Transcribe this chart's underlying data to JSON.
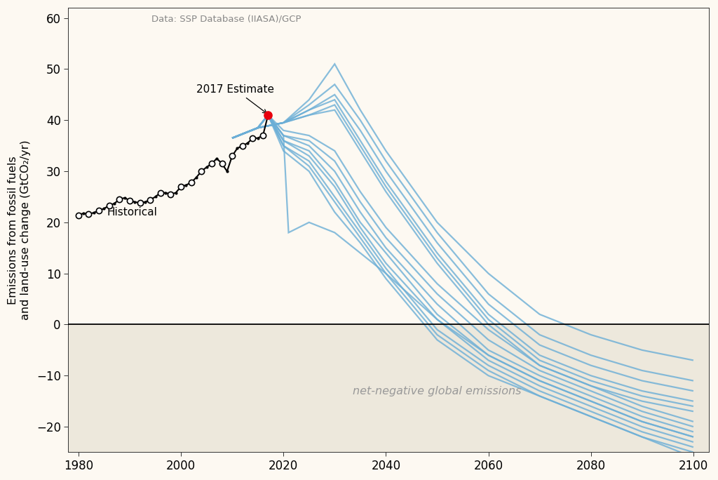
{
  "source_text": "Data: SSP Database (IIASA)/GCP",
  "ylabel": "Emissions from fossil fuels\nand land-use change (GtCO₂/yr)",
  "xlim": [
    1978,
    2103
  ],
  "ylim": [
    -25,
    62
  ],
  "yticks": [
    -20,
    -10,
    0,
    10,
    20,
    30,
    40,
    50,
    60
  ],
  "xticks": [
    1980,
    2000,
    2020,
    2040,
    2060,
    2080,
    2100
  ],
  "bg_color": "#fdf9f2",
  "plot_bg_color": "#fdf9f2",
  "negative_shade_color": "#ede8dc",
  "zero_line_color": "#000000",
  "annotation_historical": "Historical",
  "annotation_2017": "2017 Estimate",
  "net_negative_text": "net-negative global emissions",
  "historical_line_color": "#000000",
  "historical_dot_color": "#000000",
  "historical_circle_facecolor": "#ffffff",
  "historical_circle_edgecolor": "#000000",
  "estimate_2017_year": 2017,
  "estimate_2017_value": 41.0,
  "scenario_color": "#6baed6",
  "scenario_alpha": 0.8,
  "scenario_linewidth": 1.6,
  "scenarios": [
    {
      "years": [
        2010,
        2015,
        2020,
        2025,
        2030,
        2035,
        2040,
        2050,
        2060,
        2070,
        2080,
        2090,
        2100
      ],
      "values": [
        36.5,
        38.5,
        39.5,
        44,
        51,
        42,
        34,
        20,
        10,
        2,
        -2,
        -5,
        -7
      ]
    },
    {
      "years": [
        2010,
        2015,
        2020,
        2025,
        2030,
        2035,
        2040,
        2050,
        2060,
        2070,
        2080,
        2090,
        2100
      ],
      "values": [
        36.5,
        38.5,
        39.5,
        43,
        47,
        40,
        32,
        18,
        6,
        -2,
        -6,
        -9,
        -11
      ]
    },
    {
      "years": [
        2010,
        2015,
        2020,
        2025,
        2030,
        2035,
        2040,
        2050,
        2060,
        2070,
        2080,
        2090,
        2100
      ],
      "values": [
        36.5,
        38.5,
        39.5,
        42,
        45,
        38,
        30,
        16,
        4,
        -4,
        -8,
        -11,
        -13
      ]
    },
    {
      "years": [
        2010,
        2015,
        2020,
        2025,
        2030,
        2035,
        2040,
        2050,
        2060,
        2070,
        2080,
        2090,
        2100
      ],
      "values": [
        36.5,
        38.5,
        39.5,
        42,
        44,
        36,
        28,
        14,
        2,
        -6,
        -10,
        -13,
        -15
      ]
    },
    {
      "years": [
        2010,
        2015,
        2020,
        2025,
        2030,
        2035,
        2040,
        2050,
        2060,
        2070,
        2080,
        2090,
        2100
      ],
      "values": [
        36.5,
        38.5,
        39.5,
        41,
        43,
        35,
        27,
        13,
        1,
        -7,
        -11,
        -14,
        -16
      ]
    },
    {
      "years": [
        2010,
        2015,
        2020,
        2025,
        2030,
        2035,
        2040,
        2050,
        2060,
        2070,
        2080,
        2090,
        2100
      ],
      "values": [
        36.5,
        38.5,
        39.5,
        41,
        42,
        34,
        26,
        12,
        0,
        -8,
        -12,
        -15,
        -17
      ]
    },
    {
      "years": [
        2010,
        2015,
        2017,
        2020,
        2025,
        2030,
        2035,
        2040,
        2050,
        2060,
        2070,
        2080,
        2090,
        2100
      ],
      "values": [
        36.5,
        38.5,
        41,
        38,
        37,
        34,
        26,
        19,
        8,
        -1,
        -8,
        -12,
        -16,
        -19
      ]
    },
    {
      "years": [
        2010,
        2015,
        2017,
        2020,
        2025,
        2030,
        2035,
        2040,
        2050,
        2060,
        2070,
        2080,
        2090,
        2100
      ],
      "values": [
        36.5,
        38.5,
        41,
        37,
        36,
        32,
        24,
        17,
        6,
        -3,
        -9,
        -13,
        -17,
        -20
      ]
    },
    {
      "years": [
        2010,
        2015,
        2017,
        2020,
        2025,
        2030,
        2035,
        2040,
        2050,
        2060,
        2070,
        2080,
        2090,
        2100
      ],
      "values": [
        36.5,
        38.5,
        41,
        37,
        35,
        30,
        22,
        15,
        4,
        -5,
        -10,
        -14,
        -18,
        -21
      ]
    },
    {
      "years": [
        2010,
        2015,
        2017,
        2020,
        2025,
        2030,
        2035,
        2040,
        2050,
        2060,
        2070,
        2080,
        2090,
        2100
      ],
      "values": [
        36.5,
        38.5,
        41,
        36,
        34,
        28,
        20,
        14,
        2,
        -6,
        -11,
        -15,
        -19,
        -22
      ]
    },
    {
      "years": [
        2010,
        2015,
        2017,
        2020,
        2025,
        2030,
        2035,
        2040,
        2050,
        2060,
        2070,
        2080,
        2090,
        2100
      ],
      "values": [
        36.5,
        38.5,
        41,
        36,
        33,
        27,
        19,
        12,
        1,
        -7,
        -12,
        -16,
        -20,
        -23
      ]
    },
    {
      "years": [
        2010,
        2015,
        2017,
        2020,
        2021,
        2025,
        2030,
        2035,
        2040,
        2050,
        2060,
        2070,
        2080,
        2090,
        2100
      ],
      "values": [
        36.5,
        38.5,
        41,
        37,
        18,
        20,
        18,
        14,
        10,
        1,
        -6,
        -11,
        -15,
        -19,
        -22
      ]
    },
    {
      "years": [
        2010,
        2015,
        2017,
        2020,
        2025,
        2030,
        2035,
        2040,
        2050,
        2060,
        2070,
        2080,
        2090,
        2100
      ],
      "values": [
        36.5,
        38.5,
        41,
        35,
        32,
        25,
        18,
        11,
        -1,
        -8,
        -13,
        -17,
        -21,
        -24
      ]
    },
    {
      "years": [
        2010,
        2015,
        2017,
        2020,
        2025,
        2030,
        2035,
        2040,
        2050,
        2060,
        2070,
        2080,
        2090,
        2100
      ],
      "values": [
        36.5,
        38.5,
        41,
        35,
        31,
        24,
        17,
        10,
        -2,
        -9,
        -14,
        -18,
        -22,
        -25
      ]
    },
    {
      "years": [
        2010,
        2015,
        2017,
        2020,
        2025,
        2030,
        2035,
        2040,
        2050,
        2060,
        2070,
        2080,
        2090,
        2100
      ],
      "values": [
        36.5,
        38.5,
        41,
        34,
        30,
        22,
        16,
        9,
        -3,
        -10,
        -14,
        -18,
        -22,
        -26
      ]
    }
  ],
  "hist_years": [
    1980,
    1981,
    1982,
    1983,
    1984,
    1985,
    1986,
    1987,
    1988,
    1989,
    1990,
    1991,
    1992,
    1993,
    1994,
    1995,
    1996,
    1997,
    1998,
    1999,
    2000,
    2001,
    2002,
    2003,
    2004,
    2005,
    2006,
    2007,
    2008,
    2009,
    2010,
    2011,
    2012,
    2013,
    2014,
    2015,
    2016,
    2017
  ],
  "hist_values": [
    21.4,
    21.8,
    21.6,
    21.9,
    22.3,
    22.7,
    23.3,
    23.7,
    24.5,
    24.8,
    24.3,
    24.0,
    23.8,
    24.0,
    24.4,
    25.0,
    25.8,
    25.8,
    25.5,
    25.8,
    27.0,
    27.3,
    27.8,
    28.8,
    30.0,
    30.8,
    31.5,
    32.5,
    31.5,
    30.0,
    33.0,
    34.5,
    35.0,
    35.5,
    36.5,
    36.5,
    37.0,
    41.0
  ],
  "circle_marker_years": [
    1980,
    1982,
    1984,
    1986,
    1988,
    1990,
    1992,
    1994,
    1996,
    1998,
    2000,
    2002,
    2004,
    2006,
    2008,
    2010,
    2012,
    2014,
    2016
  ]
}
